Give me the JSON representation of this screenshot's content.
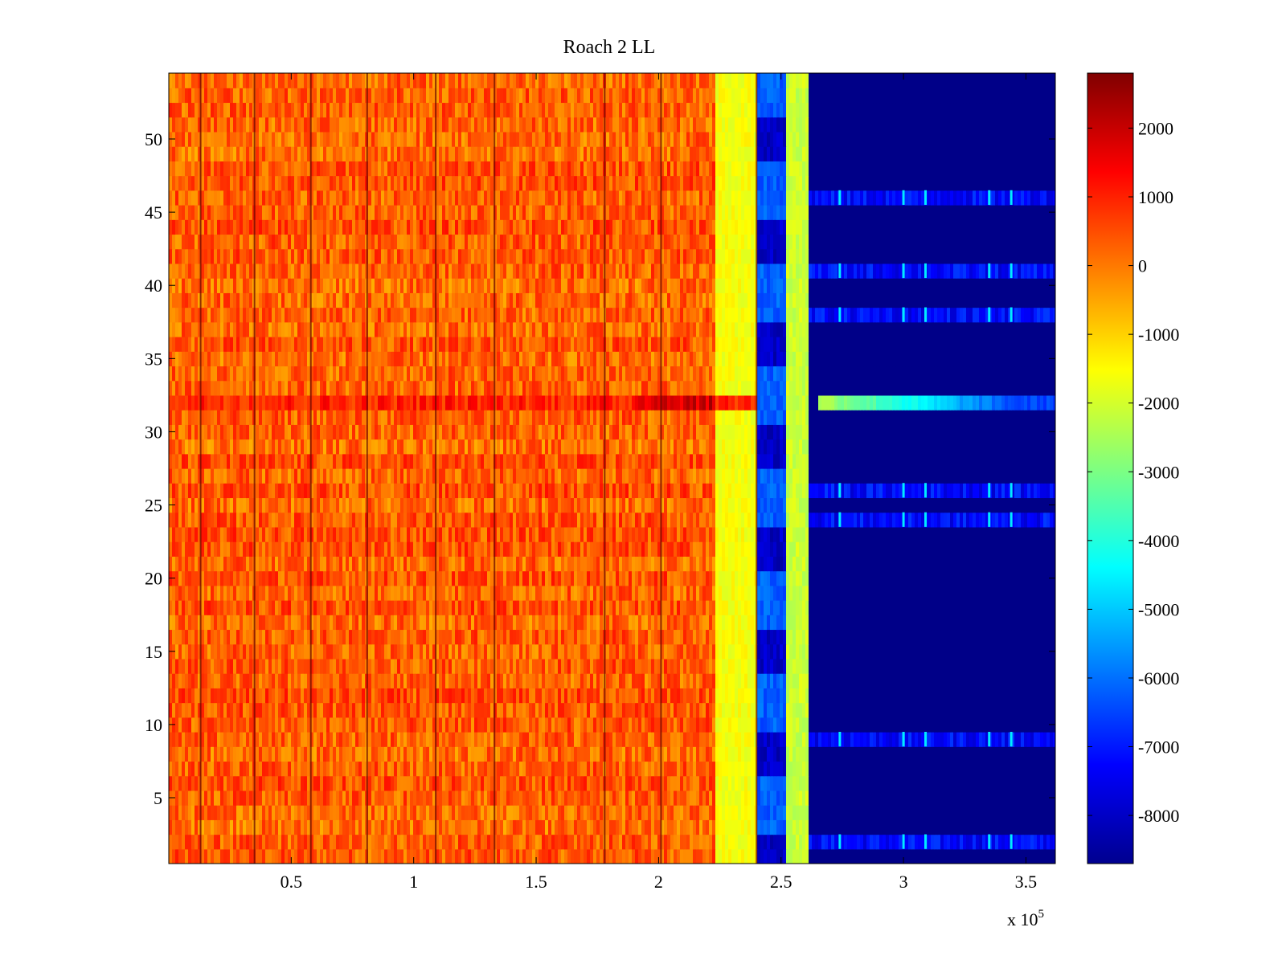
{
  "chart_data": {
    "type": "heatmap",
    "title": "Roach 2 LL",
    "xlabel": "",
    "ylabel": "",
    "x_exponent_label": "x 10",
    "x_exponent_power": "5",
    "xlim": [
      0,
      3.62
    ],
    "ylim": [
      0.5,
      54.5
    ],
    "x_ticks": [
      0.5,
      1,
      1.5,
      2,
      2.5,
      3,
      3.5
    ],
    "x_tick_labels": [
      "0.5",
      "1",
      "1.5",
      "2",
      "2.5",
      "3",
      "3.5"
    ],
    "y_ticks": [
      5,
      10,
      15,
      20,
      25,
      30,
      35,
      40,
      45,
      50
    ],
    "y_tick_labels": [
      "5",
      "10",
      "15",
      "20",
      "25",
      "30",
      "35",
      "40",
      "45",
      "50"
    ],
    "colorbar": {
      "colormap": "jet",
      "clim": [
        -8700,
        2800
      ],
      "ticks": [
        2000,
        1000,
        0,
        -1000,
        -2000,
        -3000,
        -4000,
        -5000,
        -6000,
        -7000,
        -8000
      ],
      "tick_labels": [
        "2000",
        "1000",
        "0",
        "-1000",
        "-2000",
        "-3000",
        "-4000",
        "-5000",
        "-6000",
        "-7000",
        "-8000"
      ]
    },
    "rows": 54,
    "x_bands": [
      {
        "x_start": 0.0,
        "x_end": 2.23,
        "level": 300
      },
      {
        "x_start": 2.23,
        "x_end": 2.4,
        "level": -1600
      },
      {
        "x_start": 2.4,
        "x_end": 2.52,
        "level": -6800
      },
      {
        "x_start": 2.52,
        "x_end": 2.61,
        "level": -2100
      },
      {
        "x_start": 2.61,
        "x_end": 3.62,
        "level": -8600
      }
    ],
    "dark_columns_x": [
      0.13,
      0.35,
      0.58,
      0.81,
      1.09,
      1.33,
      1.78,
      2.01,
      2.4
    ],
    "highlight_row": {
      "row": 32,
      "orange_level": 1700,
      "right_start_x": 2.65,
      "right_level_start": -2300,
      "right_level_end": -6500
    },
    "right_active_rows": [
      2,
      9,
      24,
      26,
      38,
      41,
      46
    ],
    "right_spike_x": [
      2.74,
      3.0,
      3.09,
      3.35,
      3.44
    ]
  },
  "colors": {
    "background": "#ffffff",
    "axes": "#000000"
  }
}
